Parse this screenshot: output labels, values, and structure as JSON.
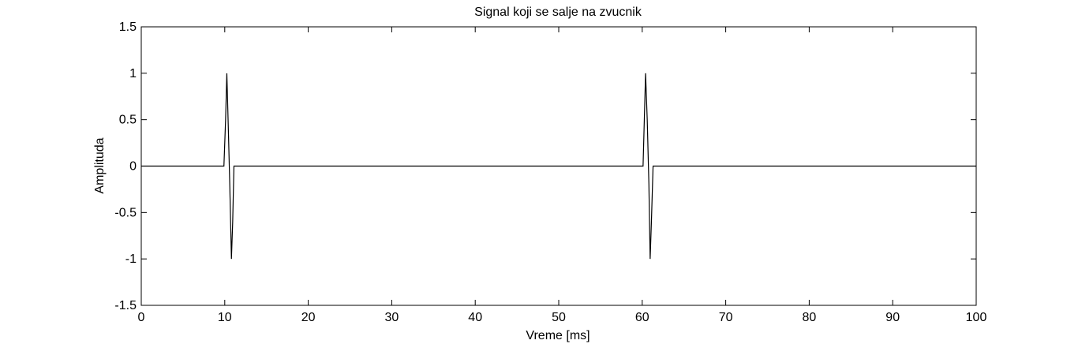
{
  "chart_data": {
    "type": "line",
    "title": "Signal koji se salje na zvucnik",
    "xlabel": "Vreme [ms]",
    "ylabel": "Amplituda",
    "xlim": [
      0,
      100
    ],
    "ylim": [
      -1.5,
      1.5
    ],
    "x_ticks": [
      0,
      10,
      20,
      30,
      40,
      50,
      60,
      70,
      80,
      90,
      100
    ],
    "y_ticks": [
      1.5,
      1,
      0.5,
      0,
      -0.5,
      -1,
      -1.5
    ],
    "x_tick_labels": [
      "0",
      "10",
      "20",
      "30",
      "40",
      "50",
      "60",
      "70",
      "80",
      "90",
      "100"
    ],
    "y_tick_labels": [
      "1.5",
      "1",
      "0.5",
      "0",
      "-0.5",
      "-1",
      "-1.5"
    ],
    "grid": false,
    "line_color": "#000000",
    "series": [
      {
        "x": [
          0,
          9.9,
          10.1,
          10.25,
          10.4,
          10.6,
          10.8,
          10.95,
          11.1,
          11.3,
          59.9,
          60.1,
          60.25,
          60.4,
          60.6,
          60.8,
          60.95,
          61.1,
          61.3,
          100
        ],
        "y": [
          0,
          0,
          0.5,
          1,
          0.5,
          -0.2,
          -1,
          -0.6,
          0,
          0,
          0,
          0,
          0.5,
          1,
          0.5,
          -0.2,
          -1,
          -0.6,
          0,
          0
        ]
      }
    ]
  }
}
